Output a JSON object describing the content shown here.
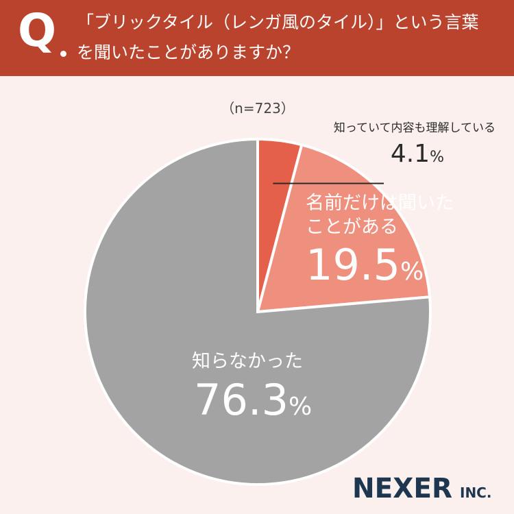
{
  "question": {
    "marker": "Q",
    "line1": "「ブリックタイル（レンガ風のタイル）」という言葉",
    "line2": "を聞いたことがありますか？"
  },
  "sample_note": "（n=723）",
  "brand": {
    "name": "NEXER",
    "suffix": "INC."
  },
  "chart_data": {
    "type": "pie",
    "start": "12 o'clock",
    "direction": "clockwise",
    "slices": [
      {
        "label_lines": [
          "知っていて内容も理解している"
        ],
        "value": 4.1,
        "display": "4.1",
        "unit": "%",
        "color": "#e5604a"
      },
      {
        "label_lines": [
          "名前だけは聞いた",
          "ことがある"
        ],
        "value": 19.5,
        "display": "19.5",
        "unit": "%",
        "color": "#ef8f7e"
      },
      {
        "label_lines": [
          "知らなかった"
        ],
        "value": 76.3,
        "display": "76.3",
        "unit": "%",
        "color": "#a3a3a3"
      }
    ]
  }
}
